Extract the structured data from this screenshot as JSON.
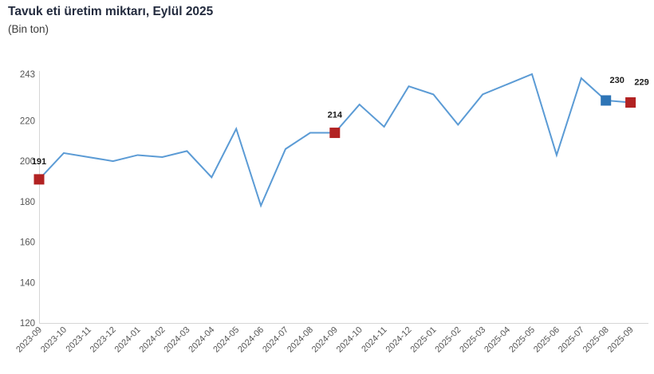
{
  "header": {
    "title": "Tavuk eti üretim miktarı, Eylül 2025",
    "subtitle": "(Bin ton)"
  },
  "chart_data": {
    "type": "line",
    "title": "Tavuk eti üretim miktarı, Eylül 2025",
    "subtitle": "(Bin ton)",
    "unit": "Bin ton",
    "categories": [
      "2023-09",
      "2023-10",
      "2023-11",
      "2023-12",
      "2024-01",
      "2024-02",
      "2024-03",
      "2024-04",
      "2024-05",
      "2024-06",
      "2024-07",
      "2024-08",
      "2024-09",
      "2024-10",
      "2024-11",
      "2024-12",
      "2025-01",
      "2025-02",
      "2025-03",
      "2025-04",
      "2025-05",
      "2025-06",
      "2025-07",
      "2025-08",
      "2025-09"
    ],
    "values": [
      191,
      204,
      202,
      200,
      203,
      202,
      205,
      192,
      216,
      178,
      206,
      214,
      214,
      228,
      217,
      237,
      233,
      218,
      233,
      238,
      243,
      203,
      241,
      230,
      229
    ],
    "ylim": [
      120,
      243
    ],
    "yticks": [
      120,
      140,
      160,
      180,
      200,
      220,
      243
    ],
    "xlabel": "",
    "ylabel": "",
    "grid": false,
    "legend": "none",
    "x_label_rotation": -45,
    "highlighted_points": [
      {
        "category": "2023-09",
        "label": "191",
        "marker_color": "#b22222",
        "marker_shape": "square"
      },
      {
        "category": "2024-09",
        "label": "214",
        "marker_color": "#b22222",
        "marker_shape": "square"
      },
      {
        "category": "2025-08",
        "label": "230",
        "marker_color": "#2e75b6",
        "marker_shape": "square"
      },
      {
        "category": "2025-09",
        "label": "229",
        "marker_color": "#b22222",
        "marker_shape": "square"
      }
    ],
    "colors": {
      "line": "#5b9bd5",
      "axis": "#d6d6d6",
      "tick_text": "#555555",
      "value_label": "#1a1a1a",
      "title_text": "#232b3e"
    }
  }
}
